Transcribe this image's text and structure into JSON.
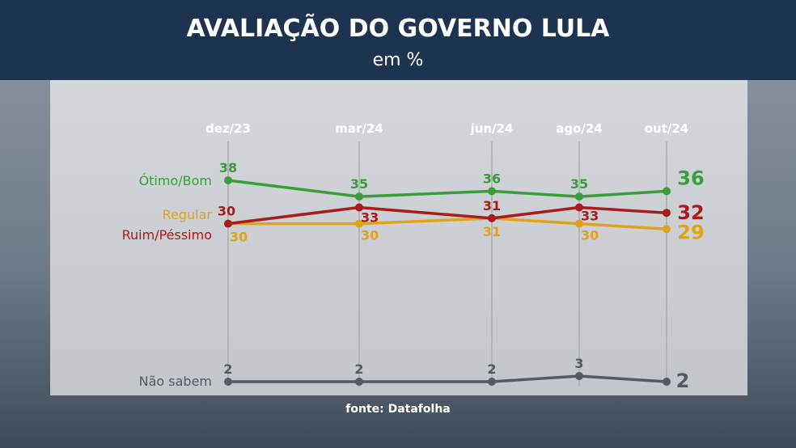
{
  "header": {
    "title": "AVALIAÇÃO DO GOVERNO LULA",
    "subtitle": "em %"
  },
  "source": "fonte: Datafolha",
  "chart_data": {
    "type": "line",
    "title": "AVALIAÇÃO DO GOVERNO LULA",
    "subtitle": "em %",
    "categories": [
      "dez/23",
      "mar/24",
      "jun/24",
      "ago/24",
      "out/24"
    ],
    "series": [
      {
        "name": "Ótimo/Bom",
        "color": "#3a9e3a",
        "values": [
          38,
          35,
          36,
          35,
          36
        ]
      },
      {
        "name": "Regular",
        "color": "#e0a21c",
        "values": [
          30,
          30,
          31,
          30,
          29
        ]
      },
      {
        "name": "Ruim/Péssimo",
        "color": "#a81c1c",
        "values": [
          30,
          33,
          31,
          33,
          32
        ]
      },
      {
        "name": "Não sabem",
        "color": "#555a60",
        "values": [
          2,
          2,
          2,
          3,
          2
        ]
      }
    ],
    "grid": "vertical",
    "legend": "left labels"
  }
}
